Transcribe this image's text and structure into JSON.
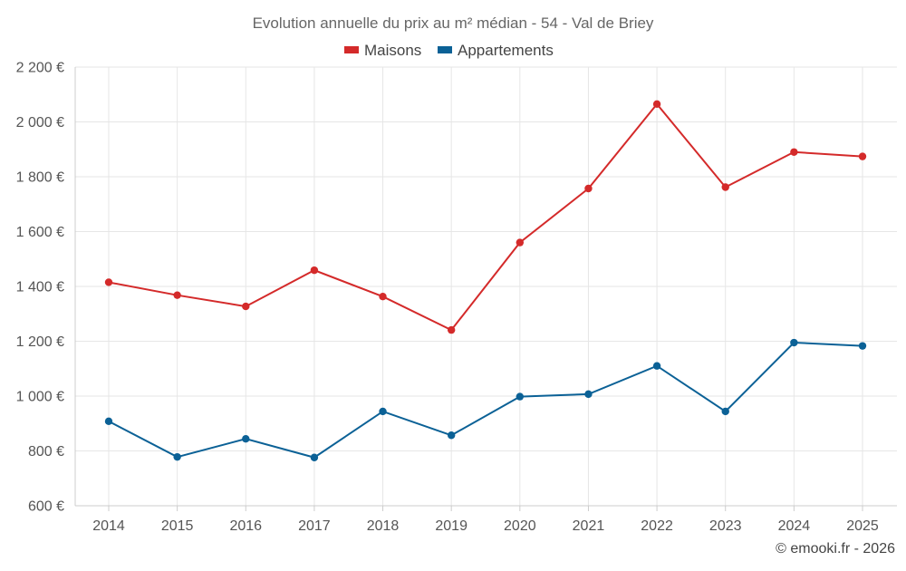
{
  "chart_data": {
    "type": "line",
    "title": "Evolution annuelle du prix au m² médian - 54 - Val de Briey",
    "categories": [
      "2014",
      "2015",
      "2016",
      "2017",
      "2018",
      "2019",
      "2020",
      "2021",
      "2022",
      "2023",
      "2024",
      "2025"
    ],
    "series": [
      {
        "name": "Maisons",
        "color": "#d42a2a",
        "values": [
          1415,
          1368,
          1327,
          1459,
          1363,
          1241,
          1560,
          1757,
          2065,
          1762,
          1890,
          1874
        ]
      },
      {
        "name": "Appartements",
        "color": "#0b6196",
        "values": [
          908,
          778,
          844,
          776,
          944,
          857,
          998,
          1007,
          1110,
          944,
          1195,
          1183
        ]
      }
    ],
    "ylim": [
      600,
      2200
    ],
    "yticks": [
      600,
      800,
      1000,
      1200,
      1400,
      1600,
      1800,
      2000,
      2200
    ],
    "ytick_labels": [
      "600 €",
      "800 €",
      "1 000 €",
      "1 200 €",
      "1 400 €",
      "1 600 €",
      "1 800 €",
      "2 000 €",
      "2 200 €"
    ],
    "xlabel": "",
    "ylabel": "",
    "legend_position": "top-center",
    "grid": true
  },
  "footer": {
    "credit": "© emooki.fr - 2026"
  }
}
